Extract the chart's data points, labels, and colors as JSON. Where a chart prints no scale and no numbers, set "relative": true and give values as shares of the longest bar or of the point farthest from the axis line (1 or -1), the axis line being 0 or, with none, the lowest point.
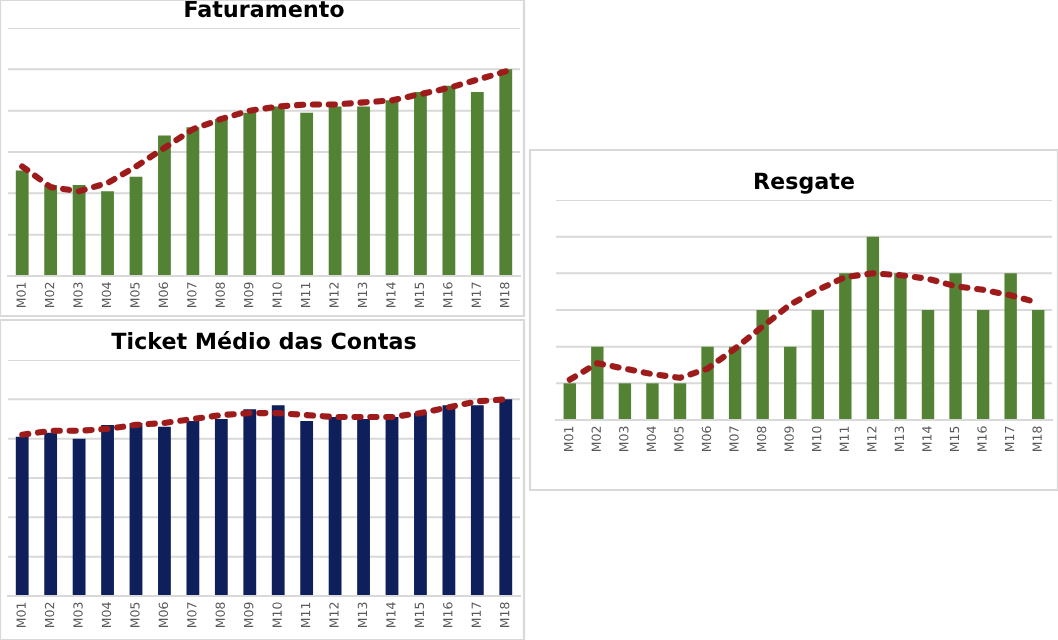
{
  "chart_data": [
    {
      "type": "bar",
      "title": "Faturamento",
      "relative": true,
      "grid": "y",
      "categories": [
        "M01",
        "M02",
        "M03",
        "M04",
        "M05",
        "M06",
        "M07",
        "M08",
        "M09",
        "M10",
        "M11",
        "M12",
        "M13",
        "M14",
        "M15",
        "M16",
        "M17",
        "M18"
      ],
      "series": [
        {
          "color": "#548235",
          "values": [
            0.51,
            0.44,
            0.44,
            0.41,
            0.48,
            0.68,
            0.72,
            0.76,
            0.79,
            0.82,
            0.79,
            0.82,
            0.82,
            0.85,
            0.89,
            0.92,
            0.89,
            1
          ]
        },
        {
          "type": "line",
          "color": "#9e1b1b",
          "line_style": "dotted",
          "values": [
            0.53,
            0.43,
            0.41,
            0.45,
            0.53,
            0.62,
            0.71,
            0.76,
            0.8,
            0.82,
            0.83,
            0.83,
            0.84,
            0.85,
            0.88,
            0.91,
            0.95,
            0.99
          ]
        }
      ]
    },
    {
      "type": "bar",
      "title": "Ticket Médio das Contas",
      "relative": true,
      "grid": "y",
      "categories": [
        "M01",
        "M02",
        "M03",
        "M04",
        "M05",
        "M06",
        "M07",
        "M08",
        "M09",
        "M10",
        "M11",
        "M12",
        "M13",
        "M14",
        "M15",
        "M16",
        "M17",
        "M18"
      ],
      "series": [
        {
          "color": "#0e1f5b",
          "values": [
            0.81,
            0.83,
            0.8,
            0.87,
            0.88,
            0.86,
            0.89,
            0.9,
            0.95,
            0.97,
            0.89,
            0.91,
            0.9,
            0.91,
            0.93,
            0.97,
            0.97,
            1
          ]
        },
        {
          "type": "line",
          "color": "#9e1b1b",
          "line_style": "dotted",
          "values": [
            0.82,
            0.84,
            0.84,
            0.85,
            0.87,
            0.88,
            0.9,
            0.92,
            0.93,
            0.93,
            0.92,
            0.91,
            0.91,
            0.91,
            0.93,
            0.96,
            0.99,
            1
          ]
        }
      ]
    },
    {
      "type": "bar",
      "title": "Resgate",
      "relative": true,
      "grid": "y",
      "categories": [
        "M01",
        "M02",
        "M03",
        "M04",
        "M05",
        "M06",
        "M07",
        "M08",
        "M09",
        "M10",
        "M11",
        "M12",
        "M13",
        "M14",
        "M15",
        "M16",
        "M17",
        "M18"
      ],
      "series": [
        {
          "color": "#548235",
          "values": [
            0.2,
            0.4,
            0.2,
            0.2,
            0.2,
            0.4,
            0.4,
            0.6,
            0.4,
            0.6,
            0.8,
            1,
            0.8,
            0.6,
            0.8,
            0.6,
            0.8,
            0.6
          ]
        },
        {
          "type": "line",
          "color": "#9e1b1b",
          "line_style": "dotted",
          "values": [
            0.22,
            0.31,
            0.28,
            0.25,
            0.23,
            0.28,
            0.39,
            0.51,
            0.63,
            0.71,
            0.78,
            0.8,
            0.79,
            0.77,
            0.73,
            0.71,
            0.68,
            0.64
          ]
        }
      ]
    }
  ]
}
